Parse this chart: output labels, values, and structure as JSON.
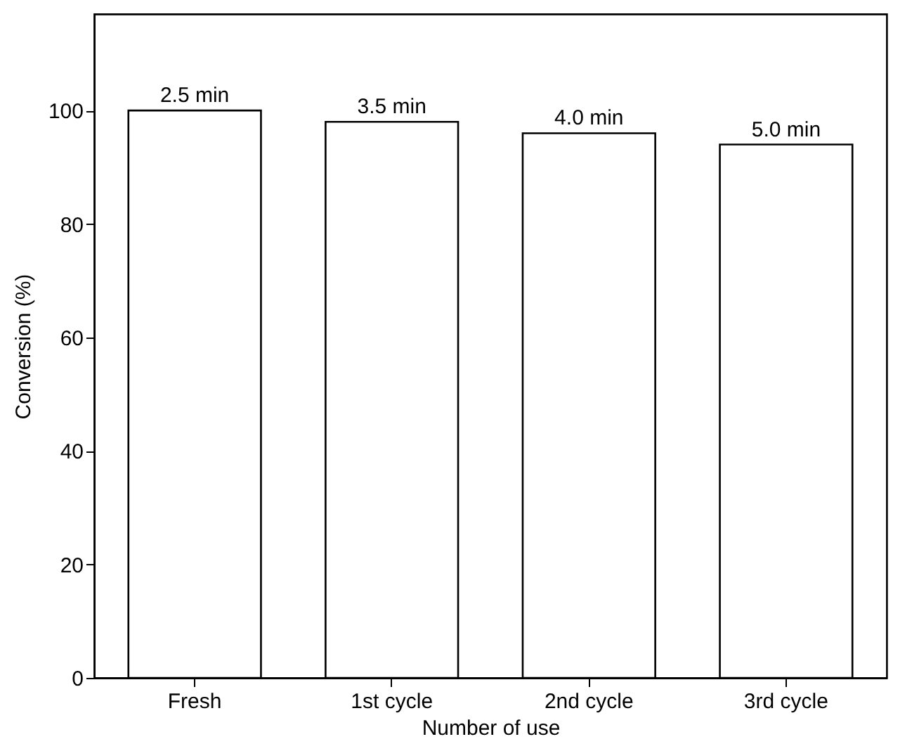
{
  "chart_data": {
    "type": "bar",
    "xlabel": "Number of use",
    "ylabel": "Conversion (%)",
    "categories": [
      "Fresh",
      "1st cycle",
      "2nd cycle",
      "3rd cycle"
    ],
    "series": [
      {
        "color": "#ffffff",
        "values": [
          100,
          98,
          96,
          94
        ]
      }
    ],
    "ylim": [
      0,
      117
    ],
    "yticks": [
      0,
      20,
      40,
      60,
      80,
      100
    ],
    "grid": false,
    "annotations": [
      {
        "text": "2.5 min",
        "x": "Fresh",
        "y": 100
      },
      {
        "text": "3.5 min",
        "x": "1st cycle",
        "y": 98
      },
      {
        "text": "4.0 min",
        "x": "2nd cycle",
        "y": 96
      },
      {
        "text": "5.0 min",
        "x": "3rd cycle",
        "y": 94
      }
    ]
  }
}
